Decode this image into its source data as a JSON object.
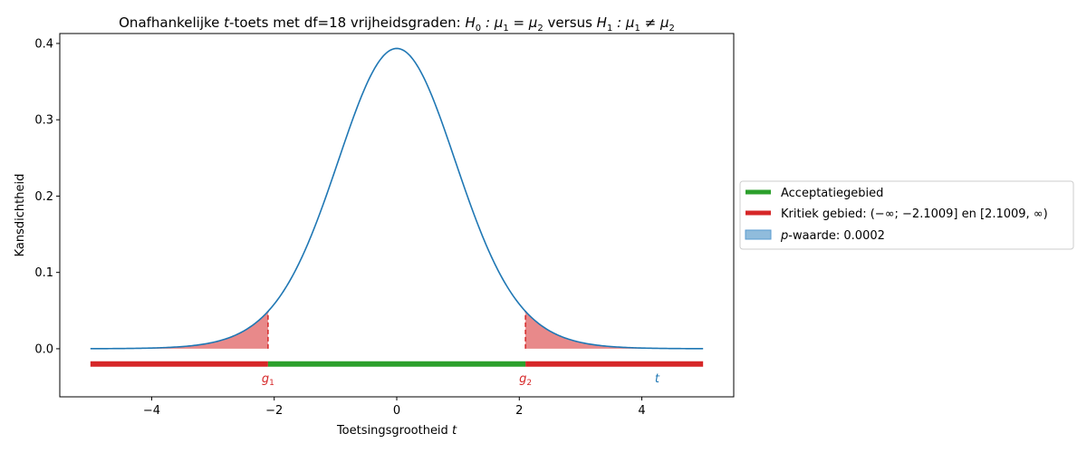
{
  "chart_data": {
    "type": "line",
    "title": "Onafhankelijke t-toets met df=18 vrijheidsgraden: H₀ : μ₁ = μ₂ versus H₁ : μ₁ ≠ μ₂",
    "title_parts": {
      "prefix": "Onafhankelijke ",
      "t": "t",
      "middle": "-toets met df=18 vrijheidsgraden: ",
      "h0": "H",
      "h0_sub": "0",
      "h0_rel": " : μ",
      "h0_sub1": "1",
      "h0_eq": " = μ",
      "h0_sub2": "2",
      "versus": " versus ",
      "h1": "H",
      "h1_sub": "1",
      "h1_rel": " : μ",
      "h1_sub1": "1",
      "h1_neq": " ≠ μ",
      "h1_sub2": "2"
    },
    "xlabel": "Toetsingsgrootheid ",
    "xlabel_var": "t",
    "ylabel": "Kansdichtheid",
    "xlim": [
      -5.5,
      5.5
    ],
    "ylim": [
      -0.063,
      0.413
    ],
    "x_ticks": [
      -4,
      -2,
      0,
      2,
      4
    ],
    "x_tick_labels": [
      "−4",
      "−2",
      "0",
      "2",
      "4"
    ],
    "y_ticks": [
      0.0,
      0.1,
      0.2,
      0.3,
      0.4
    ],
    "y_tick_labels": [
      "0.0",
      "0.1",
      "0.2",
      "0.3",
      "0.4"
    ],
    "df": 18,
    "curve": {
      "x_range": [
        -5,
        5
      ],
      "color": "#1f77b4"
    },
    "critical_values": [
      -2.1009,
      2.1009
    ],
    "critical_fill_color": "#e8898a",
    "critical_line_color": "#d62728",
    "region_bar_y": -0.02,
    "acceptance_color": "#2ca02c",
    "critical_color": "#d62728",
    "markers": [
      {
        "label": "g",
        "sub": "1",
        "x": -2.1009,
        "color": "#d62728"
      },
      {
        "label": "g",
        "sub": "2",
        "x": 2.1009,
        "color": "#d62728"
      },
      {
        "label": "t",
        "sub": "",
        "x": 4.25,
        "color": "#1f77b4"
      }
    ],
    "legend": {
      "position": "right",
      "entries": [
        {
          "kind": "line",
          "color": "#2ca02c",
          "label": "Acceptatiegebied"
        },
        {
          "kind": "line",
          "color": "#d62728",
          "label": "Kritiek gebied: (−∞; −2.1009] en [2.1009, ∞)"
        },
        {
          "kind": "patch",
          "color": "#90bcdc",
          "label_var": "p",
          "label": "-waarde: 0.0002"
        }
      ]
    }
  }
}
